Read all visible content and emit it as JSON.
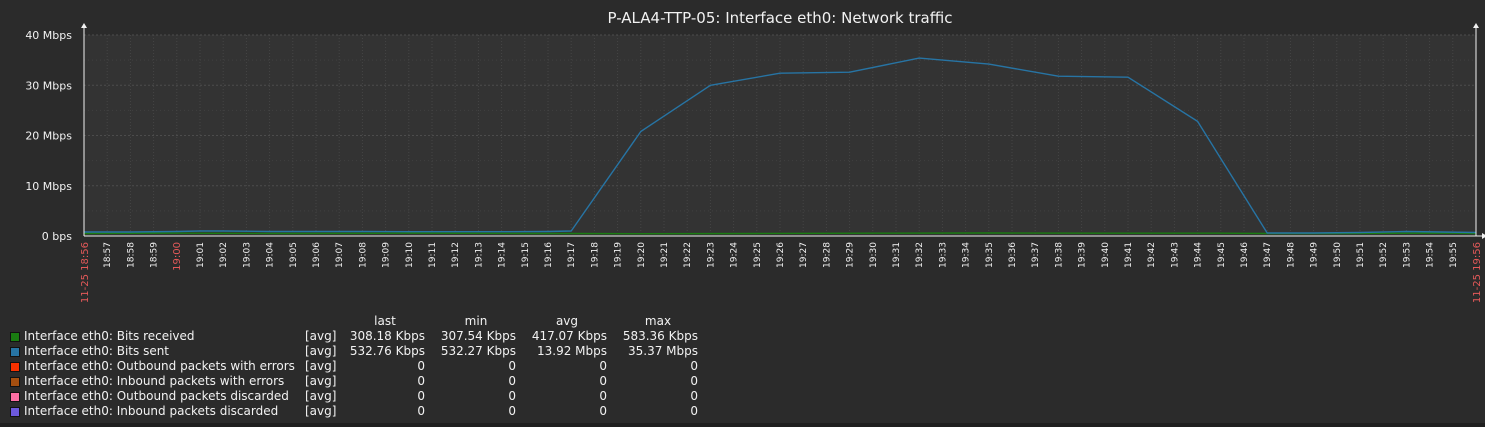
{
  "chart_data": {
    "type": "line",
    "title": "P-ALA4-TTP-05: Interface eth0: Network traffic",
    "y_ticks": [
      "0 bps",
      "10 Mbps",
      "20 Mbps",
      "30 Mbps",
      "40 Mbps"
    ],
    "ylim": [
      0,
      40
    ],
    "y_unit": "Mbps",
    "grid": true,
    "x_start_label": "11-25 18:56",
    "x_end_label": "11-25 19:56",
    "x_ticks": [
      "19:00",
      "18:57",
      "18:58",
      "18:59",
      "19:00",
      "19:01",
      "19:02",
      "19:03",
      "19:04",
      "19:05",
      "19:06",
      "19:07",
      "19:08",
      "19:09",
      "19:10",
      "19:11",
      "19:12",
      "19:13",
      "19:14",
      "19:15",
      "19:16",
      "19:17",
      "19:18",
      "19:19",
      "19:20",
      "19:21",
      "19:22",
      "19:23",
      "19:24",
      "19:25",
      "19:26",
      "19:27",
      "19:28",
      "19:29",
      "19:30",
      "19:31",
      "19:32",
      "19:33",
      "19:34",
      "19:35",
      "19:36",
      "19:37",
      "19:38",
      "19:39",
      "19:40",
      "19:41",
      "19:42",
      "19:43",
      "19:44",
      "19:45",
      "19:46",
      "19:47",
      "19:48",
      "19:49",
      "19:50",
      "19:51",
      "19:52",
      "19:53",
      "19:54",
      "19:55"
    ],
    "x_ticks_highlight": [
      "19:00"
    ],
    "series": [
      {
        "name": "Interface eth0: Bits received",
        "color": "#1a7c11",
        "x": [
          "18:56",
          "19:00",
          "19:05",
          "19:10",
          "19:15",
          "19:17",
          "19:20",
          "19:25",
          "19:30",
          "19:35",
          "19:40",
          "19:45",
          "19:47",
          "19:50",
          "19:55",
          "19:56"
        ],
        "values": [
          0.5,
          0.55,
          0.5,
          0.55,
          0.5,
          0.5,
          0.45,
          0.5,
          0.55,
          0.6,
          0.55,
          0.55,
          0.5,
          0.5,
          0.55,
          0.5
        ]
      },
      {
        "name": "Interface eth0: Bits sent",
        "color": "#2774a4",
        "x": [
          "18:56",
          "18:58",
          "19:00",
          "19:01",
          "19:02",
          "19:04",
          "19:06",
          "19:08",
          "19:10",
          "19:12",
          "19:14",
          "19:16",
          "19:17",
          "19:20",
          "19:23",
          "19:26",
          "19:29",
          "19:32",
          "19:35",
          "19:38",
          "19:41",
          "19:44",
          "19:47",
          "19:49",
          "19:51",
          "19:53",
          "19:56"
        ],
        "values": [
          0.8,
          0.8,
          0.9,
          1.0,
          1.0,
          0.9,
          0.9,
          0.9,
          0.85,
          0.85,
          0.85,
          0.9,
          1.0,
          20.8,
          30.0,
          32.4,
          32.6,
          35.4,
          34.2,
          31.8,
          31.6,
          22.8,
          0.6,
          0.6,
          0.7,
          0.9,
          0.7
        ]
      }
    ]
  },
  "legend": {
    "headers": {
      "last": "last",
      "min": "min",
      "avg": "avg",
      "max": "max"
    },
    "rows": [
      {
        "name": "Interface eth0: Bits received",
        "color": "#1a7c11",
        "func": "[avg]",
        "last": "308.18 Kbps",
        "min": "307.54 Kbps",
        "avg": "417.07 Kbps",
        "max": "583.36 Kbps"
      },
      {
        "name": "Interface eth0: Bits sent",
        "color": "#2774a4",
        "func": "[avg]",
        "last": "532.76 Kbps",
        "min": "532.27 Kbps",
        "avg": "13.92 Mbps",
        "max": "35.37 Mbps"
      },
      {
        "name": "Interface eth0: Outbound packets with errors",
        "color": "#f63100",
        "func": "[avg]",
        "last": "0",
        "min": "0",
        "avg": "0",
        "max": "0"
      },
      {
        "name": "Interface eth0: Inbound packets with errors",
        "color": "#a54f10",
        "func": "[avg]",
        "last": "0",
        "min": "0",
        "avg": "0",
        "max": "0"
      },
      {
        "name": "Interface eth0: Outbound packets discarded",
        "color": "#fc6ea3",
        "func": "[avg]",
        "last": "0",
        "min": "0",
        "avg": "0",
        "max": "0"
      },
      {
        "name": "Interface eth0: Inbound packets discarded",
        "color": "#6c59dc",
        "func": "[avg]",
        "last": "0",
        "min": "0",
        "avg": "0",
        "max": "0"
      }
    ]
  }
}
